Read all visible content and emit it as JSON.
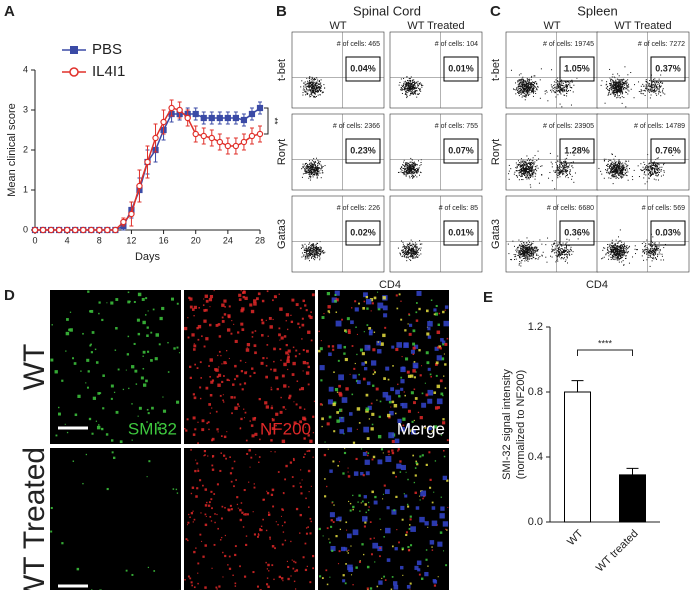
{
  "panel_labels": [
    "A",
    "B",
    "C",
    "D",
    "E"
  ],
  "chart_data": [
    {
      "type": "line",
      "xlabel": "Days",
      "ylabel": "Mean clinical score",
      "x": [
        0,
        1,
        2,
        3,
        4,
        5,
        6,
        7,
        8,
        9,
        10,
        11,
        12,
        13,
        14,
        15,
        16,
        17,
        18,
        19,
        20,
        21,
        22,
        23,
        24,
        25,
        26,
        27,
        28
      ],
      "xlim": [
        0,
        28
      ],
      "xticks": [
        0,
        4,
        8,
        12,
        16,
        20,
        24,
        28
      ],
      "ylim": [
        0,
        4
      ],
      "yticks": [
        0,
        1,
        2,
        3,
        4
      ],
      "series": [
        {
          "name": "PBS",
          "color": "#3a4aa6",
          "marker": "square",
          "values": [
            0,
            0,
            0,
            0,
            0,
            0,
            0,
            0,
            0,
            0,
            0,
            0.1,
            0.5,
            1.0,
            1.7,
            2.0,
            2.5,
            2.9,
            2.9,
            2.9,
            2.9,
            2.8,
            2.8,
            2.8,
            2.8,
            2.8,
            2.75,
            2.9,
            3.05
          ],
          "errors": [
            0,
            0,
            0,
            0,
            0,
            0,
            0,
            0,
            0,
            0,
            0,
            0.1,
            0.2,
            0.3,
            0.3,
            0.3,
            0.25,
            0.2,
            0.15,
            0.15,
            0.15,
            0.15,
            0.15,
            0.15,
            0.15,
            0.15,
            0.15,
            0.15,
            0.15
          ]
        },
        {
          "name": "IL4I1",
          "color": "#e0302a",
          "marker": "circle",
          "values": [
            0,
            0,
            0,
            0,
            0,
            0,
            0,
            0,
            0,
            0,
            0,
            0.2,
            0.4,
            1.1,
            1.7,
            2.3,
            2.7,
            3.05,
            3.0,
            2.8,
            2.4,
            2.35,
            2.3,
            2.2,
            2.1,
            2.1,
            2.2,
            2.35,
            2.4
          ],
          "errors": [
            0,
            0,
            0,
            0,
            0,
            0,
            0,
            0,
            0,
            0,
            0,
            0.1,
            0.3,
            0.4,
            0.4,
            0.35,
            0.3,
            0.2,
            0.2,
            0.2,
            0.2,
            0.2,
            0.2,
            0.2,
            0.2,
            0.2,
            0.2,
            0.2,
            0.2
          ]
        }
      ],
      "annotation": "**"
    },
    {
      "type": "bar",
      "ylabel": [
        "SMI-32 signal intensity",
        "(normalized to NF200)"
      ],
      "categories": [
        "WT",
        "WT treated"
      ],
      "values": [
        0.8,
        0.29
      ],
      "errors": [
        0.07,
        0.04
      ],
      "colors": [
        "#ffffff",
        "#000000"
      ],
      "ylim": [
        0,
        1.2
      ],
      "yticks": [
        {
          "value": 0,
          "label": "0.0"
        },
        0.4,
        0.8,
        1.2
      ],
      "annotation": "****"
    }
  ],
  "flow": [
    {
      "title": "Spinal Cord",
      "columns": [
        "WT",
        "WT Treated"
      ],
      "rows": [
        "t-bet",
        "Rorγt",
        "Gata3"
      ],
      "xlabel": "CD4",
      "cells": [
        [
          {
            "count": "# of cells: 465",
            "gate": "0.04%"
          },
          {
            "count": "# of cells: 104",
            "gate": "0.01%"
          }
        ],
        [
          {
            "count": "# of cells: 2366",
            "gate": "0.23%"
          },
          {
            "count": "# of cells: 755",
            "gate": "0.07%"
          }
        ],
        [
          {
            "count": "# of cells: 226",
            "gate": "0.02%"
          },
          {
            "count": "# of cells: 85",
            "gate": "0.01%"
          }
        ]
      ]
    },
    {
      "title": "Spleen",
      "columns": [
        "WT",
        "WT Treated"
      ],
      "rows": [
        "t-bet",
        "Rorγt",
        "Gata3"
      ],
      "xlabel": "CD4",
      "cells": [
        [
          {
            "count": "# of cells: 19745",
            "gate": "1.05%"
          },
          {
            "count": "# of cells: 7272",
            "gate": "0.37%"
          }
        ],
        [
          {
            "count": "# of cells: 23905",
            "gate": "1.28%"
          },
          {
            "count": "# of cells: 14789",
            "gate": "0.76%"
          }
        ],
        [
          {
            "count": "# of cells: 6680",
            "gate": "0.36%"
          },
          {
            "count": "# of cells: 569",
            "gate": "0.03%"
          }
        ]
      ]
    }
  ],
  "images": {
    "rows": [
      "WT",
      "WT Treated"
    ],
    "channels": [
      "SMI32",
      "NF200",
      "Merge"
    ]
  }
}
